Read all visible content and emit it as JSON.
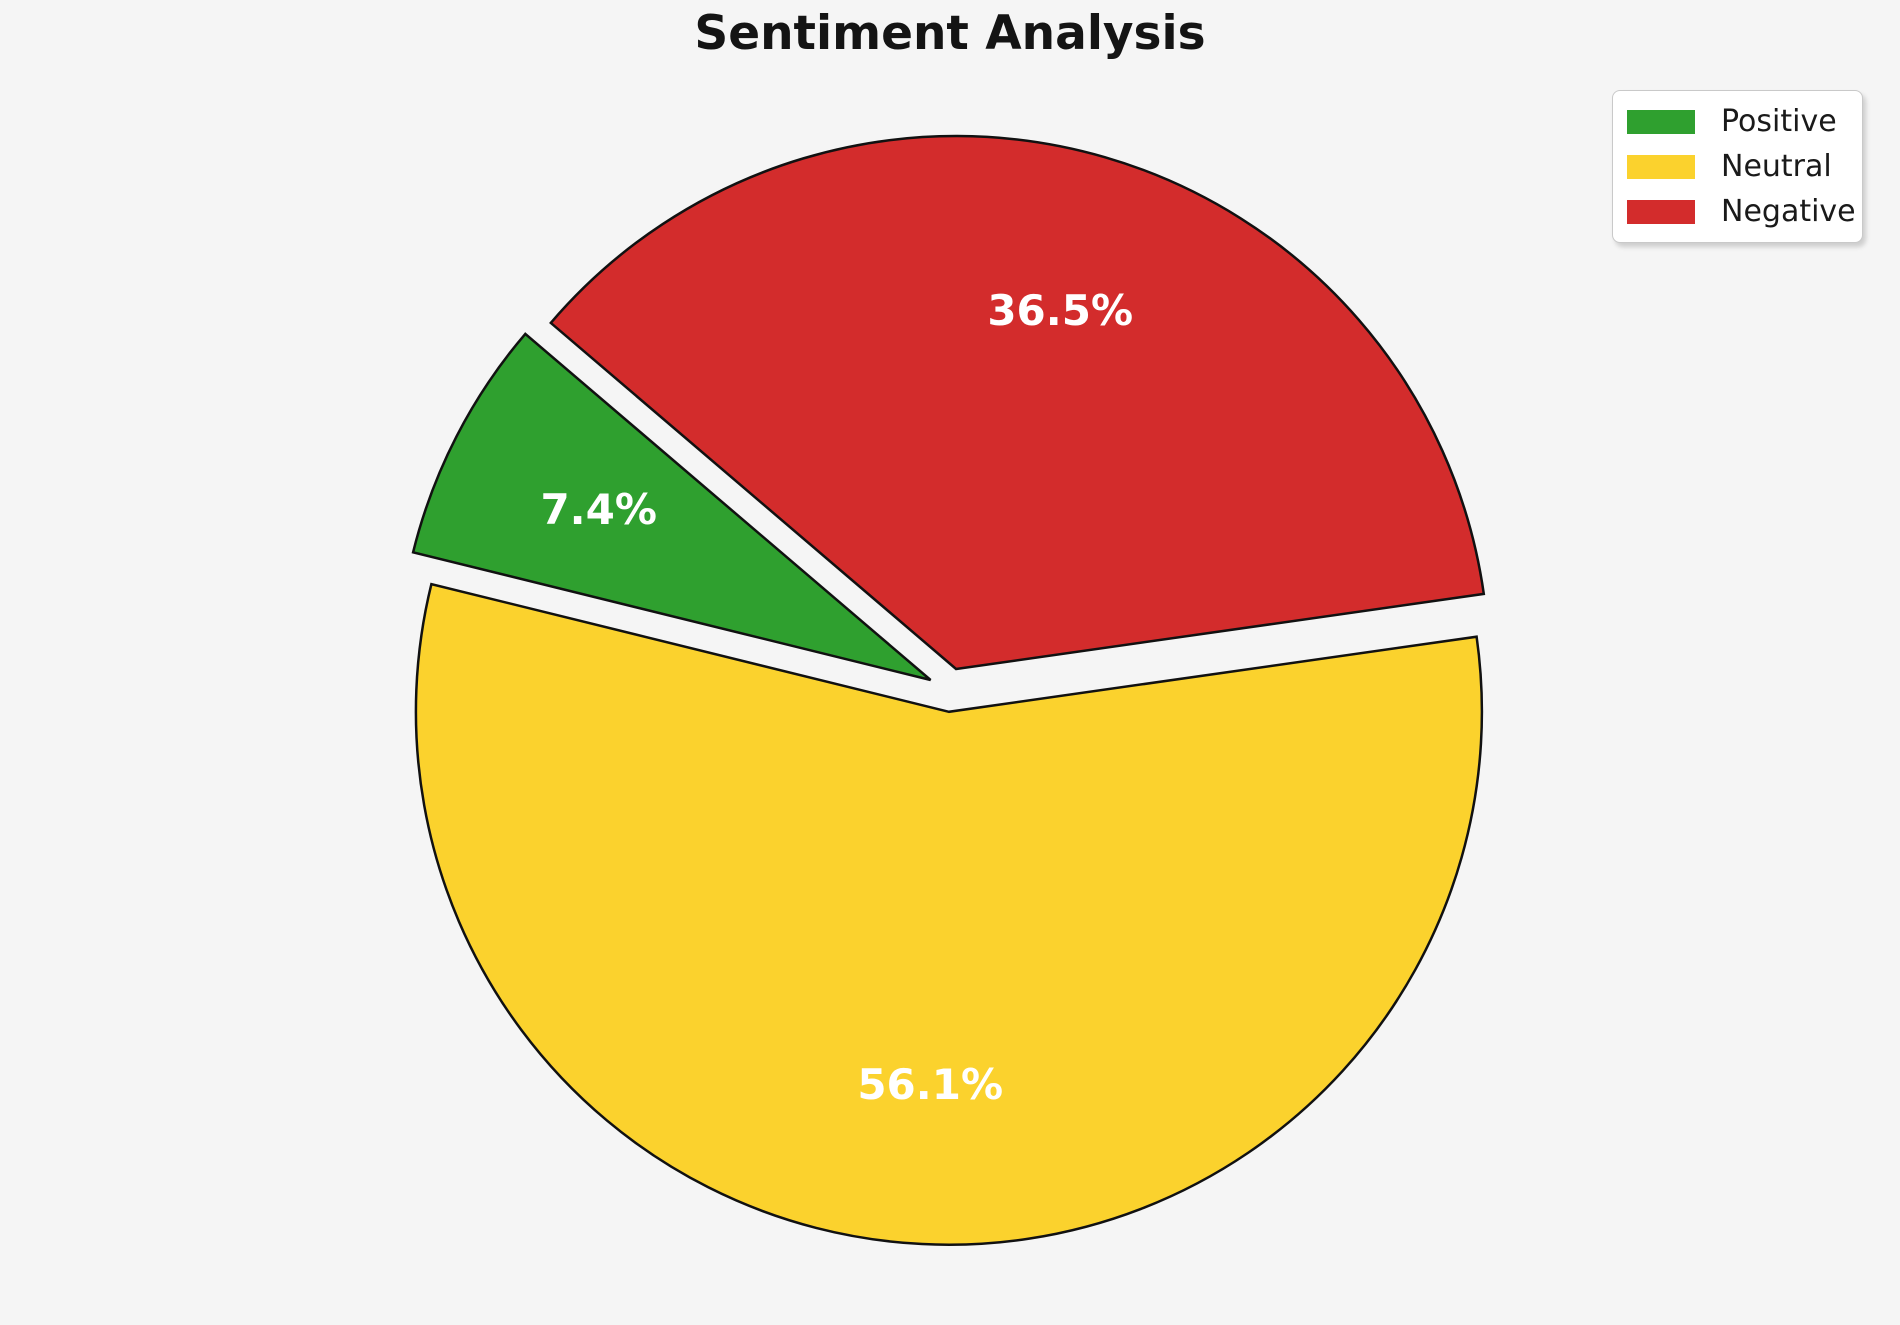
{
  "chart_data": {
    "type": "pie",
    "title": "Sentiment Analysis",
    "labels": [
      "Positive",
      "Neutral",
      "Negative"
    ],
    "values": [
      7.4,
      56.1,
      36.5
    ],
    "percent_labels": [
      "7.4%",
      "56.1%",
      "36.5%"
    ],
    "colors": [
      "#2FA02F",
      "#FBD22D",
      "#D32C2C"
    ],
    "startangle": 139.5,
    "counterclock": true,
    "explode": [
      0.041,
      0.041,
      0.041
    ],
    "pctdistance": 0.7,
    "edge_color": "#111111",
    "pct_text_color": "#FFFFFF",
    "background_color": "#F5F5F5",
    "legend": {
      "position": "upper right",
      "background": "#FFFFFF",
      "border_color": "#C9C9C9"
    }
  }
}
